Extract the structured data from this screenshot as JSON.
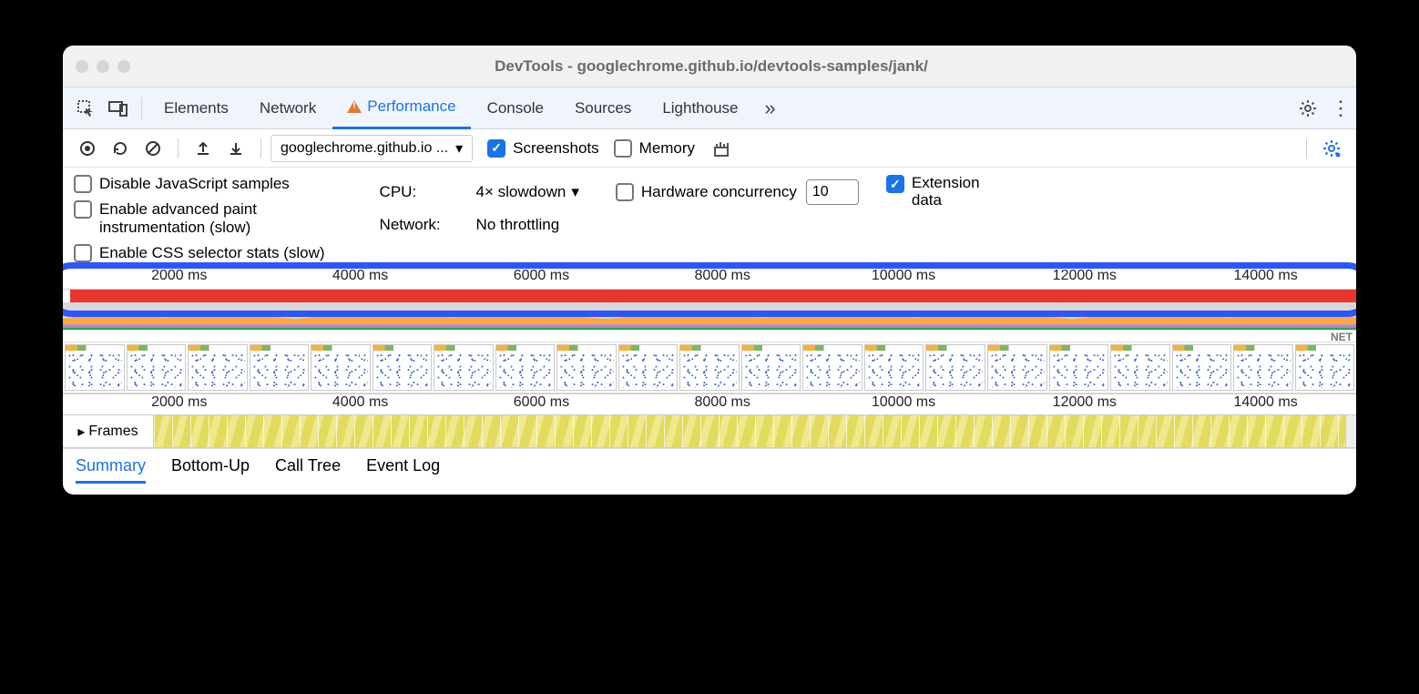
{
  "window": {
    "title": "DevTools - googlechrome.github.io/devtools-samples/jank/"
  },
  "tabs": {
    "items": [
      "Elements",
      "Network",
      "Performance",
      "Console",
      "Sources",
      "Lighthouse"
    ],
    "active_index": 2
  },
  "toolbar": {
    "url_label": "googlechrome.github.io ...",
    "screenshots_checked": true,
    "screenshots_label": "Screenshots",
    "memory_checked": false,
    "memory_label": "Memory"
  },
  "settings": {
    "disable_js": {
      "label": "Disable JavaScript samples",
      "checked": false
    },
    "adv_paint": {
      "label1": "Enable advanced paint",
      "label2": "instrumentation (slow)",
      "checked": false
    },
    "css_stats": {
      "label": "Enable CSS selector stats (slow)",
      "checked": false
    },
    "cpu_label": "CPU:",
    "cpu_value": "4× slowdown",
    "hw_concurrency_label": "Hardware concurrency",
    "hw_concurrency_checked": false,
    "hw_concurrency_value": "10",
    "ext_data_label1": "Extension",
    "ext_data_label2": "data",
    "ext_data_checked": true,
    "network_label": "Network:",
    "network_value": "No throttling"
  },
  "timeline": {
    "ruler_ticks": [
      "2000 ms",
      "4000 ms",
      "6000 ms",
      "8000 ms",
      "10000 ms",
      "12000 ms",
      "14000 ms"
    ],
    "ruler_positions_pct": [
      9,
      23,
      37,
      51,
      65,
      79,
      93
    ],
    "net_label": "NET",
    "colors": {
      "red_bar": "#e8352e",
      "orange": "#ffa938",
      "purple": "#b98ded",
      "green": "#2ba84a",
      "frames_yellow": "#e1db5e",
      "highlight": "#2b56ff"
    },
    "filmstrip_thumbs": 21,
    "frames_label": "Frames"
  },
  "detail_tabs": {
    "items": [
      "Summary",
      "Bottom-Up",
      "Call Tree",
      "Event Log"
    ],
    "active_index": 0
  }
}
